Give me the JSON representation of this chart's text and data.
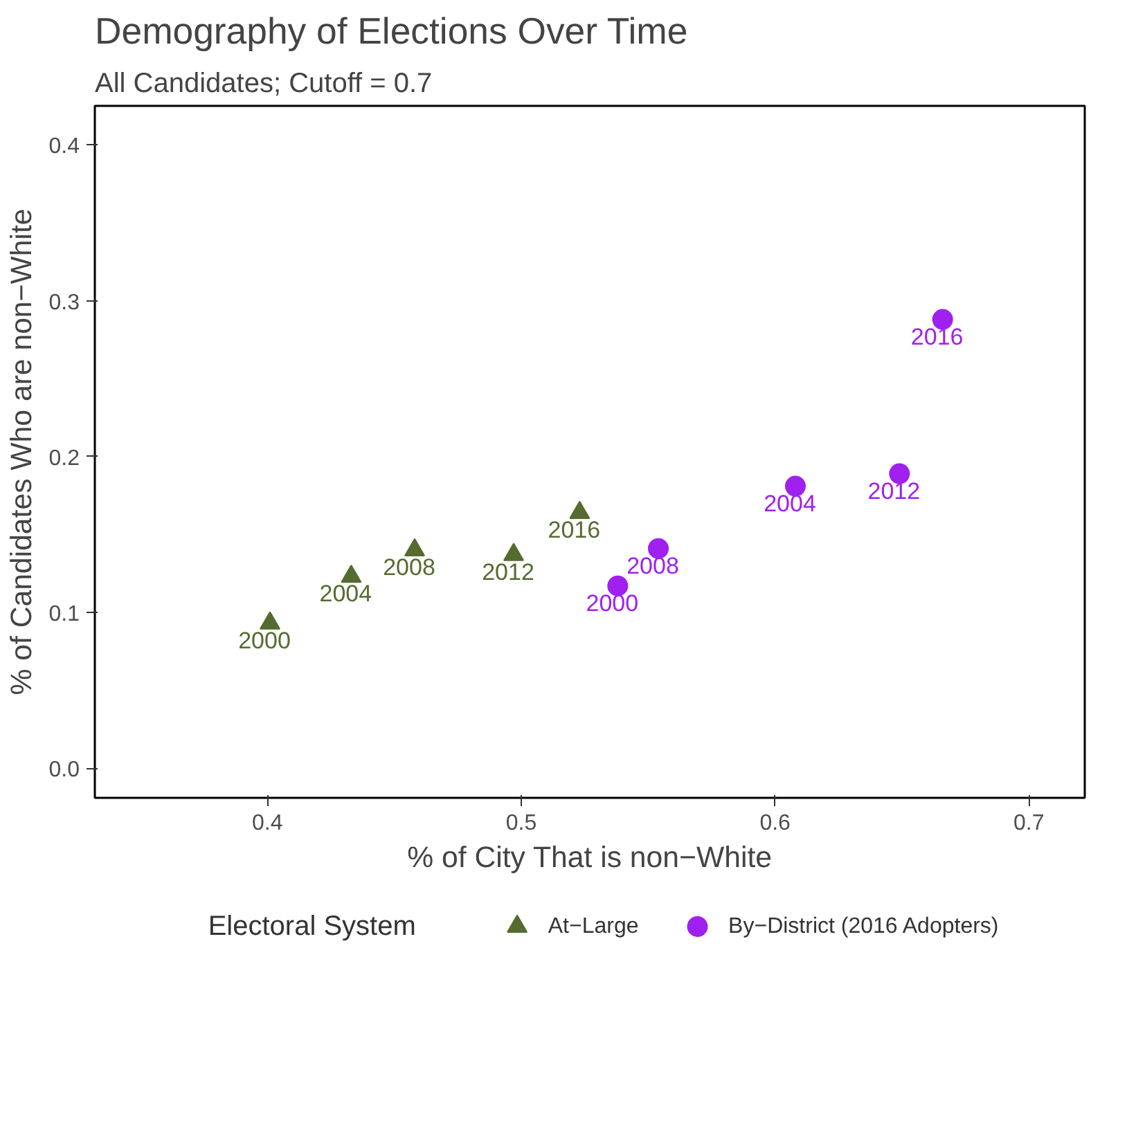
{
  "chart_data": {
    "type": "scatter",
    "title": "Demography of Elections Over Time",
    "subtitle": "All Candidates; Cutoff = 0.7",
    "xlabel": "% of City That is non−White",
    "ylabel": "% of Candidates Who are non−White",
    "legend_title": "Electoral System",
    "legend": "bottom",
    "grid": false,
    "xlim": [
      0.332,
      0.722
    ],
    "ylim": [
      -0.019,
      0.425
    ],
    "xticks": [
      0.4,
      0.5,
      0.6,
      0.7
    ],
    "yticks": [
      {
        "value": 0,
        "label": "0.0"
      },
      0.1,
      0.2,
      0.3,
      0.4
    ],
    "series": [
      {
        "name": "At−Large",
        "color": "#556b2f",
        "marker": "triangle",
        "x": [
          0.401,
          0.433,
          0.458,
          0.497,
          0.523
        ],
        "values": [
          0.093,
          0.123,
          0.14,
          0.137,
          0.164
        ]
      },
      {
        "name": "By−District (2016 Adopters)",
        "color": "#a020f0",
        "marker": "circle",
        "x": [
          0.538,
          0.554,
          0.608,
          0.649,
          0.666
        ],
        "values": [
          0.117,
          0.141,
          0.181,
          0.189,
          0.288
        ]
      }
    ],
    "annotations": [
      {
        "text": "2000",
        "x": 0.401,
        "y": 0.093
      },
      {
        "text": "2004",
        "x": 0.433,
        "y": 0.123
      },
      {
        "text": "2008",
        "x": 0.458,
        "y": 0.14
      },
      {
        "text": "2012",
        "x": 0.497,
        "y": 0.137
      },
      {
        "text": "2016",
        "x": 0.523,
        "y": 0.164
      },
      {
        "text": "2000",
        "x": 0.538,
        "y": 0.117
      },
      {
        "text": "2008",
        "x": 0.554,
        "y": 0.141
      },
      {
        "text": "2004",
        "x": 0.608,
        "y": 0.181
      },
      {
        "text": "2012",
        "x": 0.649,
        "y": 0.189
      },
      {
        "text": "2016",
        "x": 0.666,
        "y": 0.288
      }
    ]
  }
}
